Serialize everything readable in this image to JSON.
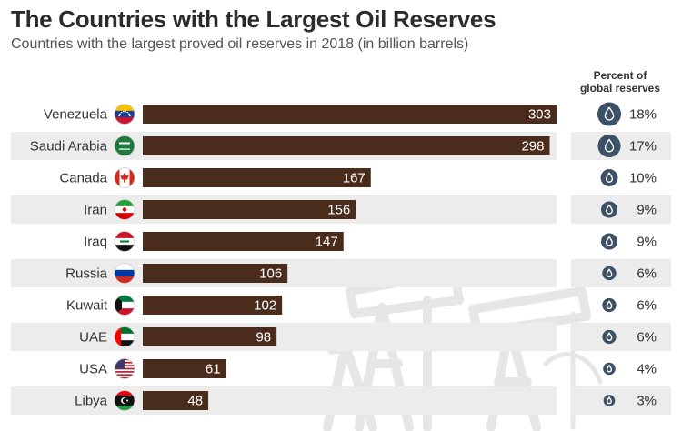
{
  "title": "The Countries with the Largest Oil Reserves",
  "subtitle": "Countries with the largest proved oil reserves in 2018 (in billion barrels)",
  "percent_header": {
    "line1": "Percent of",
    "line2": "global reserves"
  },
  "colors": {
    "bar": "#4a2c1d",
    "band": "#ececec",
    "drop": "#3d5166"
  },
  "chart_data": {
    "type": "bar",
    "orientation": "horizontal",
    "title": "The Countries with the Largest Oil Reserves",
    "subtitle": "Countries with the largest proved oil reserves in 2018 (in billion barrels)",
    "categories": [
      "Venezuela",
      "Saudi Arabia",
      "Canada",
      "Iran",
      "Iraq",
      "Russia",
      "Kuwait",
      "UAE",
      "USA",
      "Libya"
    ],
    "values": [
      303,
      298,
      167,
      156,
      147,
      106,
      102,
      98,
      61,
      48
    ],
    "percent_global": [
      "18%",
      "17%",
      "10%",
      "9%",
      "9%",
      "6%",
      "6%",
      "6%",
      "4%",
      "3%"
    ],
    "percent_values": [
      18,
      17,
      10,
      9,
      9,
      6,
      6,
      6,
      4,
      3
    ],
    "flag_icons": [
      "venezuela-flag-icon",
      "saudi-arabia-flag-icon",
      "canada-flag-icon",
      "iran-flag-icon",
      "iraq-flag-icon",
      "russia-flag-icon",
      "kuwait-flag-icon",
      "uae-flag-icon",
      "usa-flag-icon",
      "libya-flag-icon"
    ],
    "xlim": [
      0,
      303
    ],
    "grid": false,
    "legend": "none"
  }
}
